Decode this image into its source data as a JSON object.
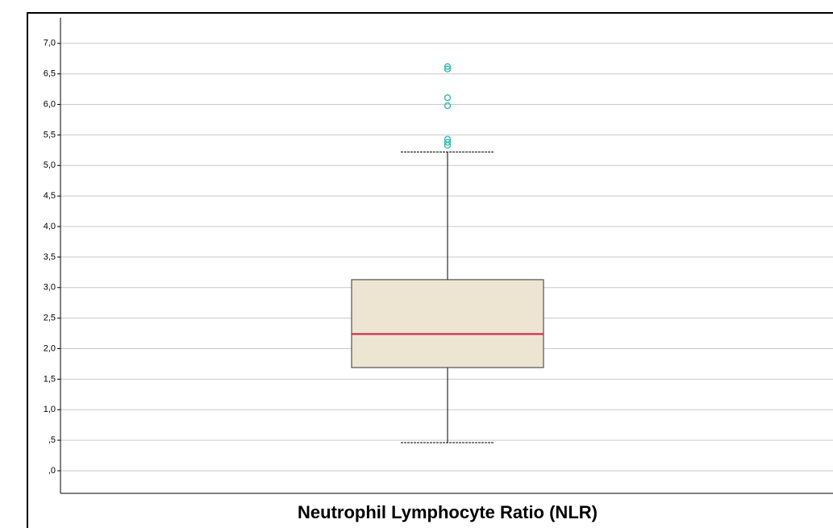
{
  "chart_data": {
    "type": "box",
    "x_label": "Neutrophil Lymphocyte Ratio (NLR)",
    "ylim": [
      -0.37,
      7.42
    ],
    "yticks": [
      {
        "value": 0,
        "label": ",0"
      },
      {
        "value": 0.5,
        "label": ",5"
      },
      {
        "value": 1,
        "label": "1,0"
      },
      {
        "value": 1.5,
        "label": "1,5"
      },
      {
        "value": 2,
        "label": "2,0"
      },
      {
        "value": 2.5,
        "label": "2,5"
      },
      {
        "value": 3,
        "label": "3,0"
      },
      {
        "value": 3.5,
        "label": "3,5"
      },
      {
        "value": 4,
        "label": "4,0"
      },
      {
        "value": 4.5,
        "label": "4,5"
      },
      {
        "value": 5,
        "label": "5,0"
      },
      {
        "value": 5.5,
        "label": "5,5"
      },
      {
        "value": 6,
        "label": "6,0"
      },
      {
        "value": 6.5,
        "label": "6,5"
      },
      {
        "value": 7,
        "label": "7,0"
      }
    ],
    "grid": true,
    "box_color": "#ede5d1",
    "median_color": "#d7193f",
    "outlier_color": "#3cbfae",
    "boxes": [
      {
        "whisker_low": 0.46,
        "q1": 1.69,
        "median": 2.24,
        "q3": 3.13,
        "whisker_high": 5.22,
        "outliers": [
          6.62,
          6.58,
          6.11,
          5.98,
          5.43,
          5.38,
          5.33
        ]
      }
    ]
  }
}
